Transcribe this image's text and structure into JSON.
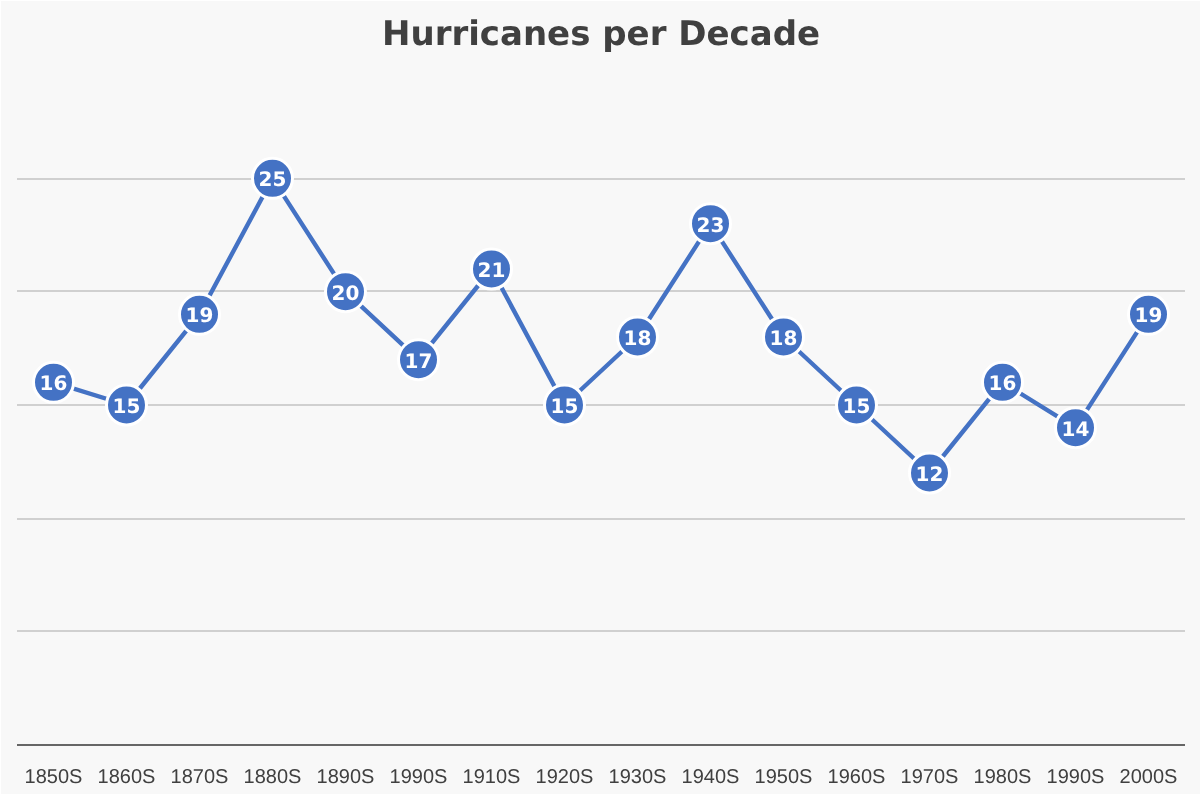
{
  "chart_data": {
    "type": "line",
    "title": "Hurricanes per Decade",
    "categories": [
      "1850S",
      "1860S",
      "1870S",
      "1880S",
      "1890S",
      "1990S",
      "1910S",
      "1920S",
      "1930S",
      "1940S",
      "1950S",
      "1960S",
      "1970S",
      "1980S",
      "1990S",
      "2000S"
    ],
    "series": [
      {
        "color": "#4472c4",
        "values": [
          16,
          15,
          19,
          25,
          20,
          17,
          21,
          15,
          18,
          23,
          18,
          15,
          12,
          16,
          14,
          19
        ]
      }
    ],
    "ylim": [
      0,
      30
    ],
    "yticks": [
      {
        "value": 0,
        "label": null
      },
      {
        "value": 5,
        "label": null
      },
      {
        "value": 10,
        "label": null
      },
      {
        "value": 15,
        "label": null
      },
      {
        "value": 20,
        "label": null
      },
      {
        "value": 25,
        "label": null
      },
      {
        "value": 30,
        "label": null
      }
    ],
    "tick_labels": "x",
    "grid": "y",
    "marker": "circle",
    "line_style": "solid",
    "data_labels": true
  }
}
